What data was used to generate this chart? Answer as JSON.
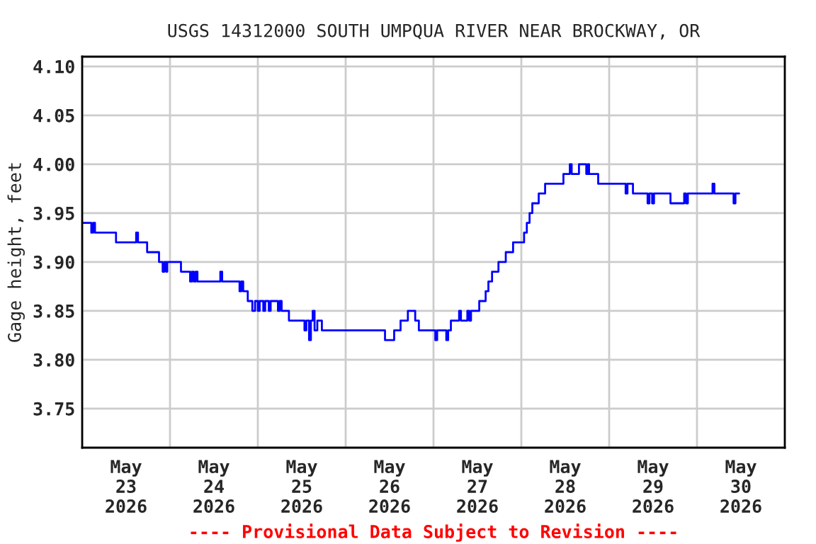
{
  "chart_data": {
    "type": "step",
    "title": "USGS 14312000 SOUTH UMPQUA RIVER NEAR BROCKWAY, OR",
    "ylabel": "Gage height, feet",
    "annotations": [
      "---- Provisional Data Subject to Revision ----"
    ],
    "x": [
      "2026-05-23T00:00",
      "2026-05-23T02:30",
      "2026-05-23T03:00",
      "2026-05-23T03:30",
      "2026-05-23T09:15",
      "2026-05-23T14:45",
      "2026-05-23T15:15",
      "2026-05-23T17:45",
      "2026-05-23T21:00",
      "2026-05-23T22:00",
      "2026-05-23T22:30",
      "2026-05-23T23:00",
      "2026-05-23T23:15",
      "2026-05-24T03:00",
      "2026-05-24T05:30",
      "2026-05-24T06:00",
      "2026-05-24T06:30",
      "2026-05-24T07:00",
      "2026-05-24T07:30",
      "2026-05-24T13:45",
      "2026-05-24T14:15",
      "2026-05-24T19:00",
      "2026-05-24T19:30",
      "2026-05-24T20:00",
      "2026-05-24T21:15",
      "2026-05-24T22:30",
      "2026-05-24T23:15",
      "2026-05-25T00:00",
      "2026-05-25T00:30",
      "2026-05-25T01:30",
      "2026-05-25T02:00",
      "2026-05-25T03:00",
      "2026-05-25T03:30",
      "2026-05-25T05:30",
      "2026-05-25T06:00",
      "2026-05-25T06:30",
      "2026-05-25T08:30",
      "2026-05-25T12:45",
      "2026-05-25T13:15",
      "2026-05-25T14:00",
      "2026-05-25T14:30",
      "2026-05-25T15:00",
      "2026-05-25T15:30",
      "2026-05-25T16:15",
      "2026-05-25T17:30",
      "2026-05-26T10:45",
      "2026-05-26T13:15",
      "2026-05-26T15:00",
      "2026-05-26T17:00",
      "2026-05-26T19:00",
      "2026-05-26T20:00",
      "2026-05-27T00:30",
      "2026-05-27T01:00",
      "2026-05-27T03:30",
      "2026-05-27T04:00",
      "2026-05-27T04:45",
      "2026-05-27T07:00",
      "2026-05-27T07:30",
      "2026-05-27T09:15",
      "2026-05-27T09:45",
      "2026-05-27T10:15",
      "2026-05-27T12:30",
      "2026-05-27T14:15",
      "2026-05-27T15:00",
      "2026-05-27T16:00",
      "2026-05-27T17:45",
      "2026-05-27T19:45",
      "2026-05-27T21:45",
      "2026-05-28T00:45",
      "2026-05-28T01:30",
      "2026-05-28T02:15",
      "2026-05-28T03:00",
      "2026-05-28T04:45",
      "2026-05-28T06:30",
      "2026-05-28T11:30",
      "2026-05-28T13:15",
      "2026-05-28T13:45",
      "2026-05-28T15:45",
      "2026-05-28T17:45",
      "2026-05-28T18:15",
      "2026-05-28T18:30",
      "2026-05-28T21:00",
      "2026-05-29T04:30",
      "2026-05-29T05:00",
      "2026-05-29T06:30",
      "2026-05-29T10:30",
      "2026-05-29T11:00",
      "2026-05-29T11:45",
      "2026-05-29T12:15",
      "2026-05-29T16:45",
      "2026-05-29T20:30",
      "2026-05-29T21:00",
      "2026-05-29T21:30",
      "2026-05-30T04:15",
      "2026-05-30T04:45",
      "2026-05-30T10:00",
      "2026-05-30T10:30",
      "2026-05-30T11:30"
    ],
    "series": [
      {
        "color": "#0000ff",
        "values": [
          3.94,
          3.93,
          3.94,
          3.93,
          3.92,
          3.93,
          3.92,
          3.91,
          3.9,
          3.89,
          3.9,
          3.89,
          3.9,
          3.89,
          3.88,
          3.89,
          3.88,
          3.89,
          3.88,
          3.89,
          3.88,
          3.87,
          3.88,
          3.87,
          3.86,
          3.85,
          3.86,
          3.85,
          3.86,
          3.85,
          3.86,
          3.85,
          3.86,
          3.85,
          3.86,
          3.85,
          3.84,
          3.83,
          3.84,
          3.82,
          3.84,
          3.85,
          3.83,
          3.84,
          3.83,
          3.82,
          3.83,
          3.84,
          3.85,
          3.84,
          3.83,
          3.82,
          3.83,
          3.82,
          3.83,
          3.84,
          3.85,
          3.84,
          3.85,
          3.84,
          3.85,
          3.86,
          3.87,
          3.88,
          3.89,
          3.9,
          3.91,
          3.92,
          3.93,
          3.94,
          3.95,
          3.96,
          3.97,
          3.98,
          3.99,
          4.0,
          3.99,
          4.0,
          3.99,
          4.0,
          3.99,
          3.98,
          3.97,
          3.98,
          3.97,
          3.96,
          3.97,
          3.96,
          3.97,
          3.96,
          3.97,
          3.96,
          3.97,
          3.98,
          3.97,
          3.96,
          3.97,
          3.97
        ]
      }
    ],
    "xlim": [
      "2026-05-23T00:00",
      "2026-05-31T00:00"
    ],
    "xticks": [
      {
        "value": "2026-05-23T00:00",
        "label": null
      },
      {
        "value": "2026-05-23T12:00",
        "label": "May\n23\n2026"
      },
      {
        "value": "2026-05-24T00:00",
        "label": null
      },
      {
        "value": "2026-05-24T12:00",
        "label": "May\n24\n2026"
      },
      {
        "value": "2026-05-25T00:00",
        "label": null
      },
      {
        "value": "2026-05-25T12:00",
        "label": "May\n25\n2026"
      },
      {
        "value": "2026-05-26T00:00",
        "label": null
      },
      {
        "value": "2026-05-26T12:00",
        "label": "May\n26\n2026"
      },
      {
        "value": "2026-05-27T00:00",
        "label": null
      },
      {
        "value": "2026-05-27T12:00",
        "label": "May\n27\n2026"
      },
      {
        "value": "2026-05-28T00:00",
        "label": null
      },
      {
        "value": "2026-05-28T12:00",
        "label": "May\n28\n2026"
      },
      {
        "value": "2026-05-29T00:00",
        "label": null
      },
      {
        "value": "2026-05-29T12:00",
        "label": "May\n29\n2026"
      },
      {
        "value": "2026-05-30T00:00",
        "label": null
      },
      {
        "value": "2026-05-30T12:00",
        "label": "May\n30\n2026"
      },
      {
        "value": "2026-05-31T00:00",
        "label": null
      }
    ],
    "ylim": [
      3.71,
      4.11
    ],
    "yticks": [
      {
        "value": 3.75,
        "label": "3.75"
      },
      {
        "value": 3.8,
        "label": "3.80"
      },
      {
        "value": 3.85,
        "label": "3.85"
      },
      {
        "value": 3.9,
        "label": "3.90"
      },
      {
        "value": 3.95,
        "label": "3.95"
      },
      {
        "value": 4.0,
        "label": "4.00"
      },
      {
        "value": 4.05,
        "label": "4.05"
      },
      {
        "value": 4.1,
        "label": "4.10"
      }
    ],
    "grid": true
  }
}
